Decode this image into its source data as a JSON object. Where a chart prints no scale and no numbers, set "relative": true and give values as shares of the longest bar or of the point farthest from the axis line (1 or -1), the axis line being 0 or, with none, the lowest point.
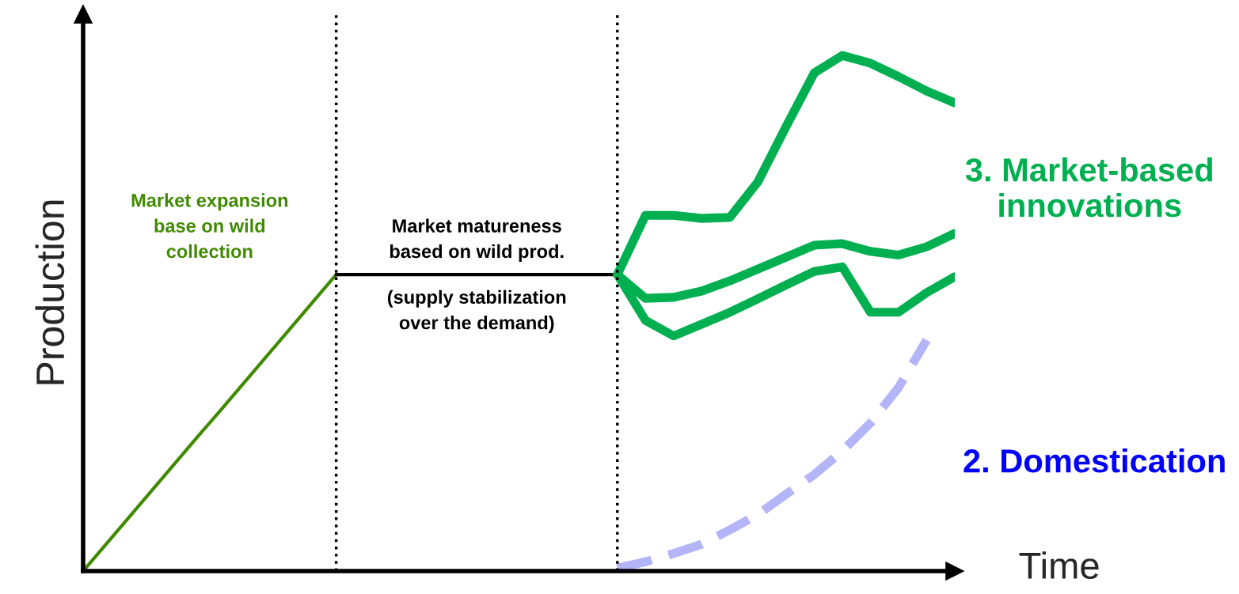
{
  "chart_data": {
    "type": "line",
    "relative": true,
    "xlabel": "Time",
    "ylabel": "Production",
    "categories": [
      null,
      null,
      null,
      null,
      null,
      null,
      null,
      null,
      null,
      null,
      null,
      null,
      null,
      null,
      null,
      null,
      null,
      null,
      null,
      null,
      null,
      null,
      null,
      null,
      null,
      null,
      null,
      null,
      null,
      null,
      null,
      null
    ],
    "series": [
      {
        "color": "#3f8a00",
        "values": [
          0,
          0.064,
          0.128,
          0.192,
          0.256,
          0.319,
          0.383,
          0.447,
          0.511,
          0.575,
          null,
          null,
          null,
          null,
          null,
          null,
          null,
          null,
          null,
          null,
          null,
          null,
          null,
          null,
          null,
          null,
          null,
          null,
          null,
          null,
          null,
          null
        ]
      },
      {
        "color": "#000000",
        "values": [
          null,
          null,
          null,
          null,
          null,
          null,
          null,
          null,
          null,
          0.575,
          0.575,
          0.575,
          0.575,
          0.575,
          0.575,
          0.575,
          0.575,
          0.575,
          0.575,
          0.575,
          null,
          null,
          null,
          null,
          null,
          null,
          null,
          null,
          null,
          null,
          null,
          null
        ]
      },
      {
        "name": "3. Market-based innovations",
        "color": "#00b050",
        "values": [
          null,
          null,
          null,
          null,
          null,
          null,
          null,
          null,
          null,
          null,
          null,
          null,
          null,
          null,
          null,
          null,
          null,
          null,
          null,
          0.575,
          0.69,
          0.69,
          0.684,
          0.686,
          0.755,
          0.862,
          0.966,
          1.0,
          0.985,
          0.959,
          0.931,
          0.908
        ]
      },
      {
        "color": "#00b050",
        "values": [
          null,
          null,
          null,
          null,
          null,
          null,
          null,
          null,
          null,
          null,
          null,
          null,
          null,
          null,
          null,
          null,
          null,
          null,
          null,
          0.575,
          0.529,
          0.531,
          0.543,
          0.563,
          0.586,
          0.609,
          0.632,
          0.635,
          0.62,
          0.613,
          0.629,
          0.655
        ]
      },
      {
        "color": "#00b050",
        "values": [
          null,
          null,
          null,
          null,
          null,
          null,
          null,
          null,
          null,
          null,
          null,
          null,
          null,
          null,
          null,
          null,
          null,
          null,
          null,
          0.575,
          0.486,
          0.456,
          0.479,
          0.502,
          0.528,
          0.555,
          0.581,
          0.59,
          0.502,
          0.502,
          0.54,
          0.571
        ]
      },
      {
        "name": "2. Domestication",
        "color": "#b4b4f8",
        "line_style": "dashed",
        "values": [
          null,
          null,
          null,
          null,
          null,
          null,
          null,
          null,
          null,
          null,
          null,
          null,
          null,
          null,
          null,
          null,
          null,
          null,
          null,
          0.006,
          0.018,
          0.034,
          0.052,
          0.08,
          0.11,
          0.149,
          0.187,
          0.233,
          0.287,
          0.356,
          0.448,
          null
        ]
      }
    ],
    "annotations": [
      "Market expansion\nbase on wild\ncollection",
      "Market matureness\nbased on wild prod.",
      "(supply stabilization\nover the demand)"
    ]
  }
}
